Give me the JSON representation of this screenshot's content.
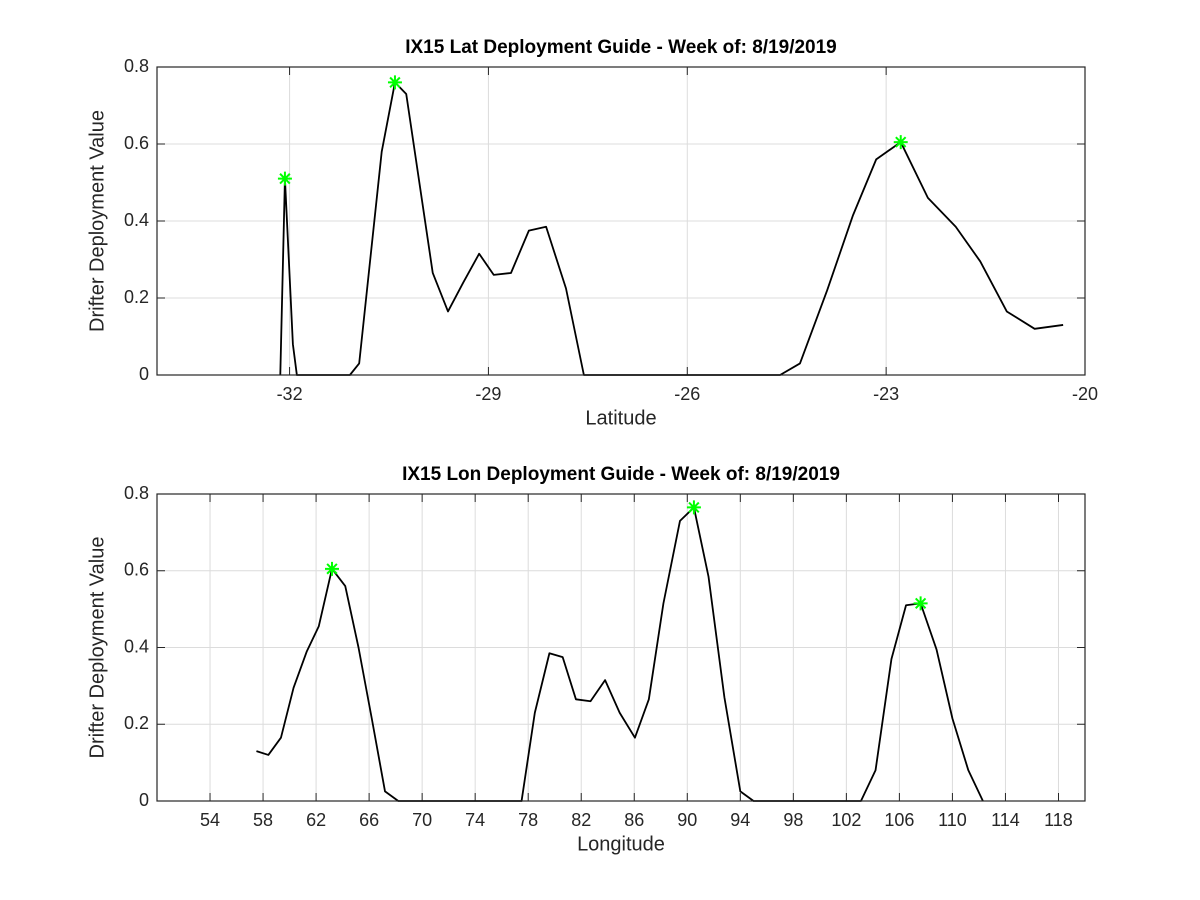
{
  "chart_data": [
    {
      "type": "line",
      "title": "IX15 Lat Deployment Guide - Week of: 8/19/2019",
      "xlabel": "Latitude",
      "ylabel": "Drifter Deployment Value",
      "xlim": [
        -34,
        -20
      ],
      "xticks": [
        -32,
        -29,
        -26,
        -23,
        -20
      ],
      "ylim": [
        0,
        0.8
      ],
      "yticks": [
        0,
        0.2,
        0.4,
        0.6,
        0.8
      ],
      "grid": true,
      "series": [
        {
          "color": "#000000",
          "marker": "none",
          "x": [
            -32.14,
            -32.07,
            -31.95,
            -31.89,
            -31.09,
            -30.95,
            -30.61,
            -30.41,
            -30.24,
            -29.84,
            -29.61,
            -29.38,
            -29.14,
            -28.92,
            -28.66,
            -28.39,
            -28.13,
            -27.83,
            -27.56,
            -24.6,
            -24.3,
            -23.89,
            -23.5,
            -23.15,
            -22.78,
            -22.37,
            -21.95,
            -21.58,
            -21.18,
            -20.76,
            -20.33
          ],
          "values": [
            0,
            0.51,
            0.08,
            0,
            0,
            0.03,
            0.58,
            0.76,
            0.73,
            0.265,
            0.165,
            0.24,
            0.315,
            0.26,
            0.265,
            0.375,
            0.385,
            0.225,
            0,
            0,
            0.03,
            0.22,
            0.415,
            0.56,
            0.605,
            0.46,
            0.385,
            0.295,
            0.165,
            0.12,
            0.13
          ]
        },
        {
          "color": "#00ff00",
          "marker": "asterisk",
          "x": [
            -32.07,
            -30.41,
            -22.78
          ],
          "values": [
            0.51,
            0.76,
            0.605
          ]
        }
      ]
    },
    {
      "type": "line",
      "title": "IX15 Lon Deployment Guide - Week of: 8/19/2019",
      "xlabel": "Longitude",
      "ylabel": "Drifter Deployment Value",
      "xlim": [
        50,
        120
      ],
      "xticks": [
        54,
        58,
        62,
        66,
        70,
        74,
        78,
        82,
        86,
        90,
        94,
        98,
        102,
        106,
        110,
        114,
        118
      ],
      "ylim": [
        0,
        0.8
      ],
      "yticks": [
        0,
        0.2,
        0.4,
        0.6,
        0.8
      ],
      "grid": true,
      "series": [
        {
          "color": "#000000",
          "marker": "none",
          "x": [
            57.5,
            58.4,
            59.35,
            60.3,
            61.3,
            62.2,
            63.2,
            64.2,
            65.2,
            66.2,
            67.2,
            68.2,
            77.5,
            78.5,
            79.6,
            80.6,
            81.6,
            82.7,
            83.8,
            84.9,
            86.05,
            87.1,
            88.2,
            89.45,
            90.5,
            91.6,
            92.8,
            94.0,
            95.0,
            103.1,
            104.2,
            105.4,
            106.5,
            107.6,
            108.8,
            110.0,
            111.2,
            112.3
          ],
          "values": [
            0.13,
            0.12,
            0.165,
            0.295,
            0.39,
            0.455,
            0.605,
            0.56,
            0.4,
            0.215,
            0.025,
            0,
            0,
            0.23,
            0.385,
            0.375,
            0.265,
            0.26,
            0.315,
            0.23,
            0.165,
            0.265,
            0.515,
            0.73,
            0.765,
            0.585,
            0.27,
            0.025,
            0,
            0,
            0.08,
            0.37,
            0.51,
            0.515,
            0.395,
            0.215,
            0.08,
            0
          ]
        },
        {
          "color": "#00ff00",
          "marker": "asterisk",
          "x": [
            63.2,
            90.5,
            107.6
          ],
          "values": [
            0.605,
            0.765,
            0.515
          ]
        }
      ]
    }
  ]
}
